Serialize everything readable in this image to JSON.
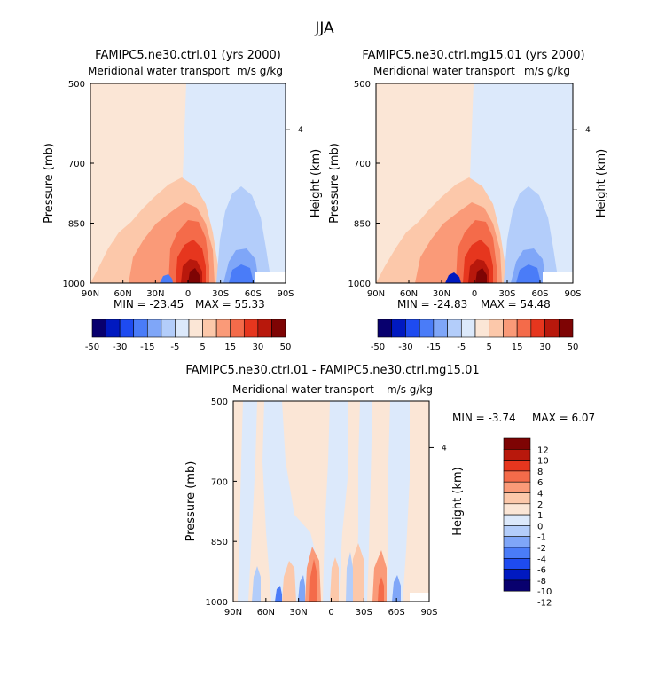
{
  "figure_title": "JJA",
  "colors": {
    "full": [
      "#08006e",
      "#0019c0",
      "#1e4bf0",
      "#4a7cf8",
      "#7fa6f8",
      "#b3cdfa",
      "#dce9fb",
      "#fbe6d6",
      "#fcc8aa",
      "#fa9a78",
      "#f46b4a",
      "#e6361e",
      "#b8180c",
      "#7e0404"
    ],
    "diff": [
      "#08006e",
      "#0019c0",
      "#1e4bf0",
      "#4a7cf8",
      "#7fa6f8",
      "#b3cdfa",
      "#dce9fb",
      "#fbe6d6",
      "#fcc8aa",
      "#fa9a78",
      "#f46b4a",
      "#e6361e",
      "#b8180c",
      "#7e0404"
    ]
  },
  "chart_data": [
    {
      "type": "heatmap",
      "title": "FAMIPC5.ne30.ctrl.01 (yrs 2000)",
      "subtitle": "Meridional water transport",
      "units": "m/s g/kg",
      "ylabel": "Pressure (mb)",
      "ylabel_right": "Height (km)",
      "x_ticks": [
        "90N",
        "60N",
        "30N",
        "0",
        "30S",
        "60S",
        "90S"
      ],
      "x_values": [
        90,
        60,
        30,
        0,
        -30,
        -60,
        -90
      ],
      "xlim": [
        90,
        -90
      ],
      "y_ticks": [
        "500",
        "700",
        "850",
        "1000"
      ],
      "y_values": [
        500,
        700,
        850,
        1000
      ],
      "ylim": [
        1000,
        500
      ],
      "right_ticks": [
        "4"
      ],
      "right_tick_pressure": 616,
      "min": -23.45,
      "max": 55.33,
      "min_text": "MIN = -23.45",
      "max_text": "MAX = 55.33",
      "color_levels": [
        -50,
        -30,
        -15,
        -5,
        5,
        15,
        30,
        50
      ],
      "colorbar_labels": [
        "-50",
        "-30",
        "-15",
        "-5",
        "5",
        "15",
        "30",
        "50"
      ]
    },
    {
      "type": "heatmap",
      "title": "FAMIPC5.ne30.ctrl.mg15.01 (yrs 2000)",
      "subtitle": "Meridional water transport",
      "units": "m/s g/kg",
      "ylabel": "Pressure (mb)",
      "ylabel_right": "Height (km)",
      "x_ticks": [
        "90N",
        "60N",
        "30N",
        "0",
        "30S",
        "60S",
        "90S"
      ],
      "x_values": [
        90,
        60,
        30,
        0,
        -30,
        -60,
        -90
      ],
      "xlim": [
        90,
        -90
      ],
      "y_ticks": [
        "500",
        "700",
        "850",
        "1000"
      ],
      "y_values": [
        500,
        700,
        850,
        1000
      ],
      "ylim": [
        1000,
        500
      ],
      "right_ticks": [
        "4"
      ],
      "right_tick_pressure": 616,
      "min": -24.83,
      "max": 54.48,
      "min_text": "MIN = -24.83",
      "max_text": "MAX = 54.48",
      "color_levels": [
        -50,
        -30,
        -15,
        -5,
        5,
        15,
        30,
        50
      ],
      "colorbar_labels": [
        "-50",
        "-30",
        "-15",
        "-5",
        "5",
        "15",
        "30",
        "50"
      ]
    },
    {
      "type": "heatmap",
      "title": "FAMIPC5.ne30.ctrl.01 - FAMIPC5.ne30.ctrl.mg15.01",
      "subtitle": "Meridional water transport",
      "units": "m/s g/kg",
      "ylabel": "Pressure (mb)",
      "ylabel_right": "Height (km)",
      "x_ticks": [
        "90N",
        "60N",
        "30N",
        "0",
        "30S",
        "60S",
        "90S"
      ],
      "x_values": [
        90,
        60,
        30,
        0,
        -30,
        -60,
        -90
      ],
      "xlim": [
        90,
        -90
      ],
      "y_ticks": [
        "500",
        "700",
        "850",
        "1000"
      ],
      "y_values": [
        500,
        700,
        850,
        1000
      ],
      "ylim": [
        1000,
        500
      ],
      "right_ticks": [
        "4"
      ],
      "right_tick_pressure": 616,
      "min": -3.74,
      "max": 6.07,
      "min_text": "MIN = -3.74",
      "max_text": "MAX = 6.07",
      "color_levels": [
        -12,
        -10,
        -8,
        -6,
        -4,
        -2,
        -1,
        0,
        1,
        2,
        4,
        6,
        8,
        10,
        12
      ],
      "colorbar_labels": [
        "12",
        "10",
        "8",
        "6",
        "4",
        "2",
        "1",
        "0",
        "-1",
        "-2",
        "-4",
        "-6",
        "-8",
        "-10",
        "-12"
      ]
    }
  ]
}
